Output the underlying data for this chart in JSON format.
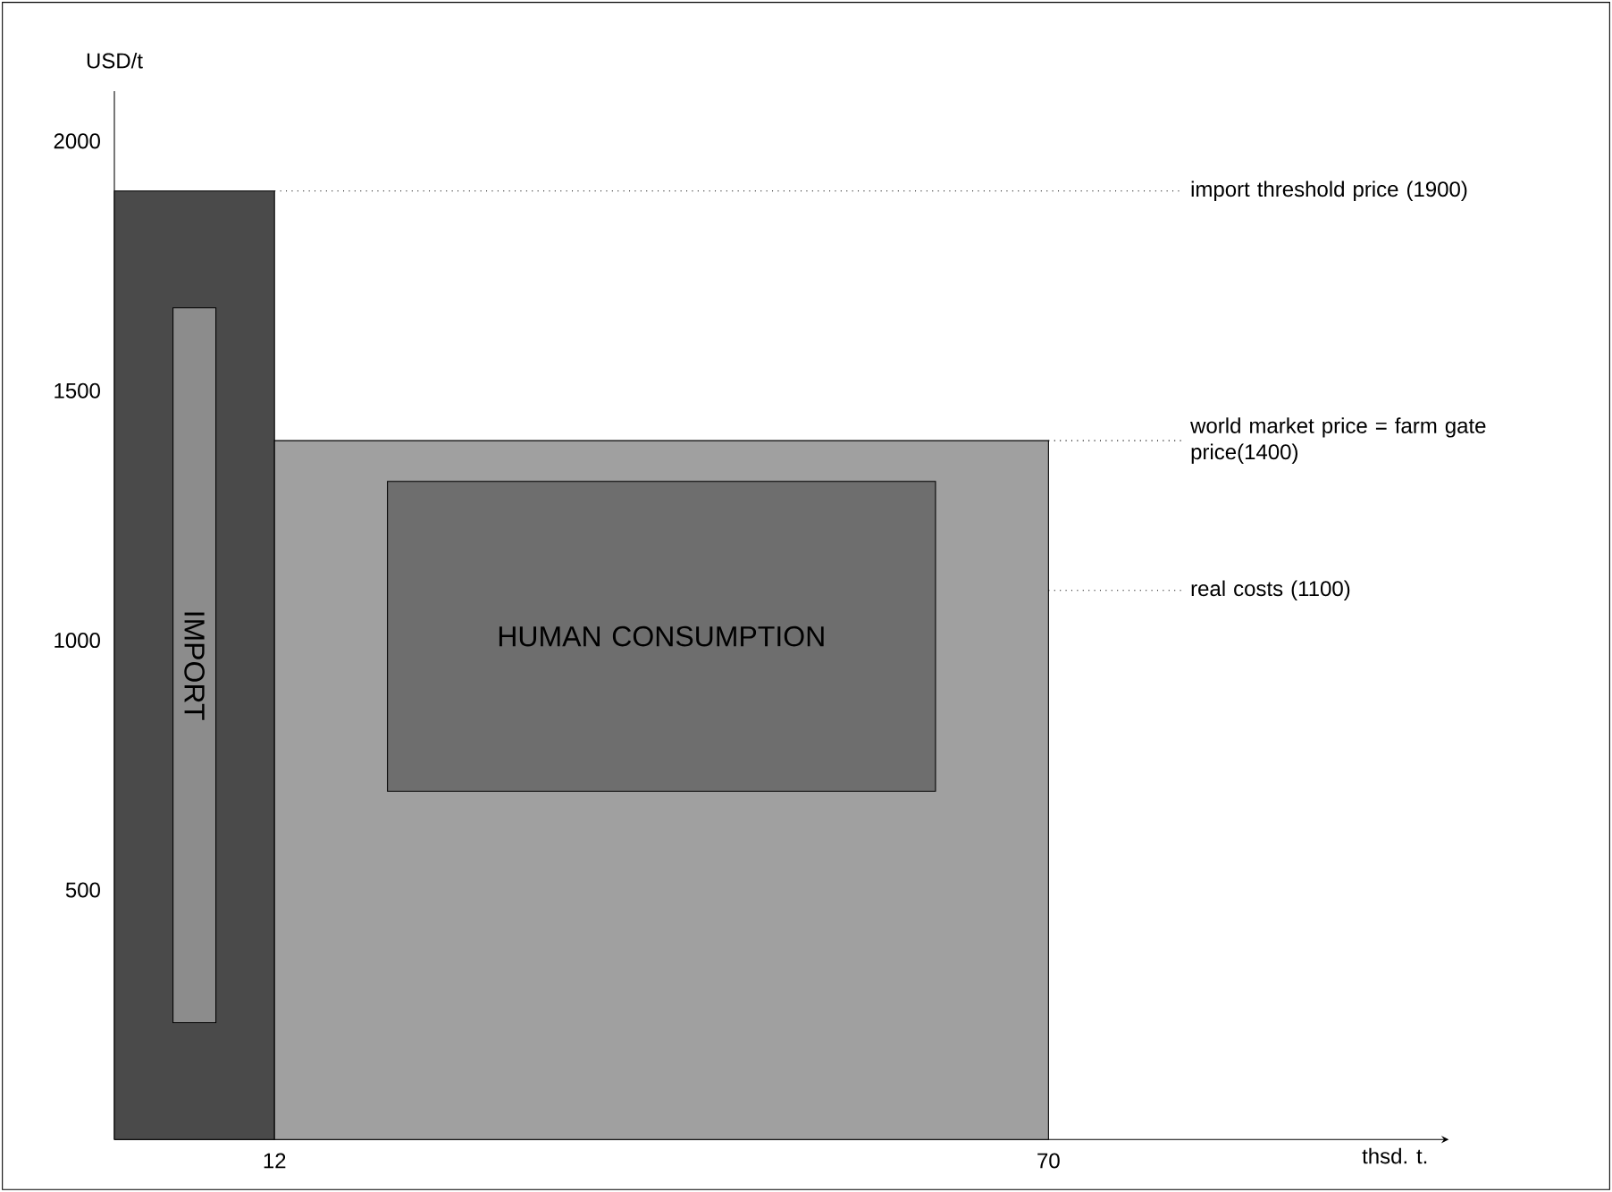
{
  "chart_data": {
    "type": "area",
    "xlabel": "thsd. t.",
    "ylabel": "USD/t",
    "series": [
      {
        "x": [
          0,
          12
        ],
        "values": [
          1900,
          1900
        ],
        "color": "#4a4a4a"
      },
      {
        "x": [
          12,
          70
        ],
        "values": [
          1400,
          1400
        ],
        "color": "#a0a0a0"
      }
    ],
    "xlim": [
      0,
      100
    ],
    "ylim": [
      0,
      2100
    ],
    "xticks": [
      12,
      70
    ],
    "yticks": [
      500,
      1000,
      1500,
      2000
    ],
    "ref_lines": [
      {
        "axis": "y",
        "value": 1900,
        "label": "import threshold price (1900)",
        "line_style": "dotted"
      },
      {
        "axis": "y",
        "value": 1400,
        "label": "world market price = farm gate price(1400)",
        "line_style": "dotted"
      },
      {
        "axis": "y",
        "value": 1100,
        "label": "real costs (1100)",
        "line_style": "dotted"
      }
    ],
    "annotations": [
      "IMPORT",
      "HUMAN CONSUMPTION"
    ]
  }
}
